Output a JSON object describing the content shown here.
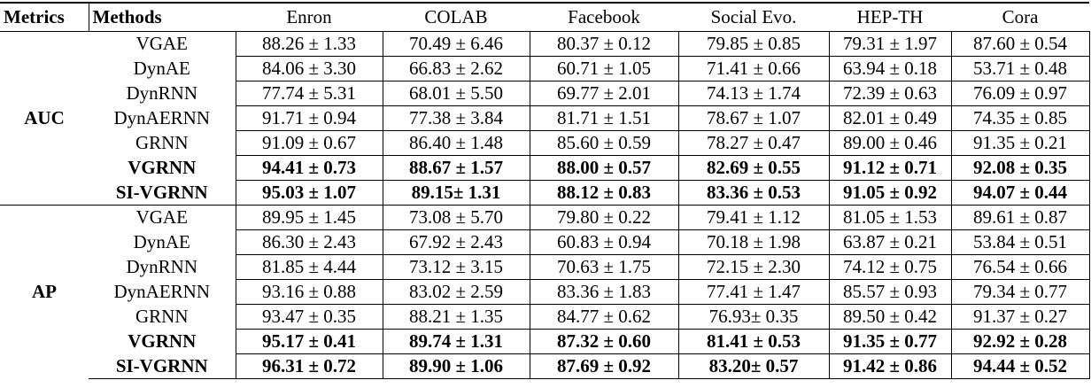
{
  "header": [
    "Metrics",
    "Methods",
    "Enron",
    "COLAB",
    "Facebook",
    "Social Evo.",
    "HEP-TH",
    "Cora"
  ],
  "groups": [
    {
      "metric": "AUC",
      "rows": [
        {
          "method": "VGAE",
          "cells": [
            "88.26 ± 1.33",
            "70.49 ± 6.46",
            "80.37 ± 0.12",
            "79.85 ± 0.85",
            "79.31 ± 1.97",
            "87.60 ± 0.54"
          ]
        },
        {
          "method": "DynAE",
          "cells": [
            "84.06 ± 3.30",
            "66.83 ± 2.62",
            "60.71 ± 1.05",
            "71.41 ± 0.66",
            "63.94 ± 0.18",
            "53.71 ± 0.48"
          ]
        },
        {
          "method": "DynRNN",
          "cells": [
            "77.74 ± 5.31",
            "68.01 ± 5.50",
            "69.77 ± 2.01",
            "74.13 ± 1.74",
            "72.39 ± 0.63",
            "76.09 ± 0.97"
          ]
        },
        {
          "method": "DynAERNN",
          "cells": [
            "91.71 ± 0.94",
            "77.38 ± 3.84",
            "81.71 ± 1.51",
            "78.67 ± 1.07",
            "82.01 ± 0.49",
            "74.35 ± 0.85"
          ]
        },
        {
          "method": "GRNN",
          "cells": [
            "91.09 ± 0.67",
            "86.40 ± 1.48",
            "85.60 ± 0.59",
            "78.27 ± 0.47",
            "89.00 ± 0.46",
            "91.35 ± 0.21"
          ]
        },
        {
          "method": "VGRNN",
          "cells": [
            "94.41 ± 0.73",
            "88.67 ± 1.57",
            "88.00 ± 0.57",
            "82.69 ± 0.55",
            "91.12 ± 0.71",
            "92.08 ± 0.35"
          ]
        },
        {
          "method": "SI-VGRNN",
          "cells": [
            "95.03 ± 1.07",
            "89.15± 1.31",
            "88.12 ± 0.83",
            "83.36 ± 0.53",
            "91.05 ± 0.92",
            "94.07 ± 0.44"
          ]
        }
      ]
    },
    {
      "metric": "AP",
      "rows": [
        {
          "method": "VGAE",
          "cells": [
            "89.95 ± 1.45",
            "73.08 ± 5.70",
            "79.80 ± 0.22",
            "79.41 ± 1.12",
            "81.05 ± 1.53",
            "89.61 ± 0.87"
          ]
        },
        {
          "method": "DynAE",
          "cells": [
            "86.30 ± 2.43",
            "67.92 ± 2.43",
            "60.83 ± 0.94",
            "70.18 ± 1.98",
            "63.87 ± 0.21",
            "53.84 ± 0.51"
          ]
        },
        {
          "method": "DynRNN",
          "cells": [
            "81.85 ± 4.44",
            "73.12 ± 3.15",
            "70.63 ± 1.75",
            "72.15 ± 2.30",
            "74.12 ± 0.75",
            "76.54 ± 0.66"
          ]
        },
        {
          "method": "DynAERNN",
          "cells": [
            "93.16 ± 0.88",
            "83.02 ± 2.59",
            "83.36 ± 1.83",
            "77.41 ± 1.47",
            "85.57 ± 0.93",
            "79.34 ± 0.77"
          ]
        },
        {
          "method": "GRNN",
          "cells": [
            "93.47 ± 0.35",
            "88.21 ± 1.35",
            "84.77 ± 0.62",
            "76.93± 0.35",
            "89.50 ± 0.42",
            "91.37 ± 0.27"
          ]
        },
        {
          "method": "VGRNN",
          "cells": [
            "95.17 ± 0.41",
            "89.74 ± 1.31",
            "87.32 ± 0.60",
            "81.41 ± 0.53",
            "91.35 ± 0.77",
            "92.92 ± 0.28"
          ]
        },
        {
          "method": "SI-VGRNN",
          "cells": [
            "96.31 ± 0.72",
            "89.90 ± 1.06",
            "87.69 ± 0.92",
            "83.20± 0.57",
            "91.42 ± 0.86",
            "94.44 ± 0.52"
          ]
        }
      ]
    }
  ]
}
